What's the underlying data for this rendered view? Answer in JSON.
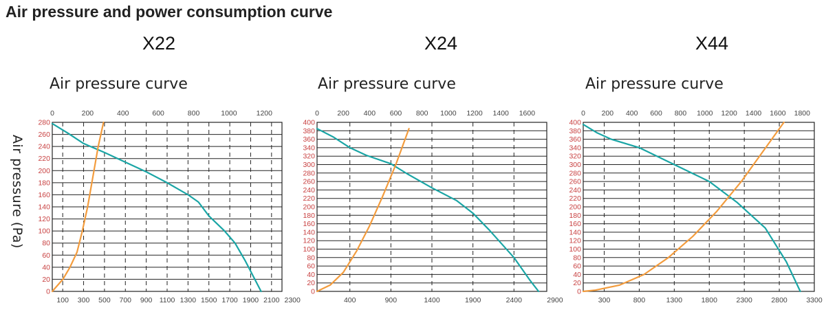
{
  "page_title": "Air pressure and power consumption curve",
  "yaxis_title": "Air pressure (Pa)",
  "colors": {
    "pressure_curve": "#1aa5a5",
    "power_curve": "#f39c3d",
    "tick_red": "#c84040",
    "grid": "#222222"
  },
  "chart_data": [
    {
      "type": "line",
      "model": "X22",
      "title": "Air pressure curve",
      "top_axis": {
        "ticks": [
          0,
          200,
          400,
          600,
          800,
          1000,
          1200
        ],
        "range": [
          0,
          1300
        ]
      },
      "bottom_axis": {
        "ticks": [
          100,
          300,
          500,
          700,
          900,
          1100,
          1300,
          1500,
          1700,
          1900,
          2100,
          2300
        ],
        "range": [
          0,
          2200
        ]
      },
      "y_axis": {
        "ticks": [
          0,
          20,
          40,
          60,
          80,
          100,
          120,
          140,
          160,
          180,
          200,
          220,
          240,
          260,
          280
        ],
        "range": [
          0,
          280
        ]
      },
      "series": [
        {
          "name": "Air pressure",
          "axis": "bottom",
          "x": [
            0,
            150,
            300,
            500,
            700,
            900,
            1100,
            1300,
            1400,
            1500,
            1650,
            1750,
            1850,
            2000
          ],
          "y": [
            278,
            262,
            245,
            230,
            214,
            198,
            180,
            160,
            148,
            125,
            100,
            80,
            50,
            0
          ]
        },
        {
          "name": "Power consumption",
          "axis": "top",
          "x": [
            0,
            60,
            100,
            140,
            170,
            200,
            230,
            260,
            290
          ],
          "y": [
            0,
            20,
            40,
            65,
            100,
            140,
            190,
            240,
            290
          ]
        }
      ]
    },
    {
      "type": "line",
      "model": "X24",
      "title": "Air pressure curve",
      "top_axis": {
        "ticks": [
          0,
          200,
          400,
          600,
          800,
          1000,
          1200,
          1400,
          1600
        ],
        "range": [
          0,
          1750
        ]
      },
      "bottom_axis": {
        "ticks": [
          400,
          900,
          1400,
          1900,
          2400,
          2900
        ],
        "range": [
          0,
          2800
        ]
      },
      "y_axis": {
        "ticks": [
          0,
          20,
          40,
          60,
          80,
          100,
          120,
          140,
          160,
          180,
          200,
          220,
          240,
          260,
          280,
          300,
          320,
          340,
          360,
          380,
          400
        ],
        "range": [
          0,
          400
        ]
      },
      "series": [
        {
          "name": "Air pressure",
          "axis": "bottom",
          "x": [
            0,
            200,
            400,
            600,
            900,
            1100,
            1400,
            1700,
            1900,
            2100,
            2400,
            2600,
            2700
          ],
          "y": [
            385,
            365,
            340,
            322,
            302,
            278,
            245,
            215,
            185,
            145,
            80,
            25,
            0
          ]
        },
        {
          "name": "Power consumption",
          "axis": "top",
          "x": [
            0,
            100,
            200,
            300,
            400,
            500,
            600,
            700
          ],
          "y": [
            0,
            15,
            45,
            95,
            155,
            225,
            300,
            385
          ]
        }
      ]
    },
    {
      "type": "line",
      "model": "X44",
      "title": "Air pressure curve",
      "top_axis": {
        "ticks": [
          0,
          200,
          400,
          600,
          800,
          1000,
          1200,
          1400,
          1600,
          1800
        ],
        "range": [
          0,
          1900
        ]
      },
      "bottom_axis": {
        "ticks": [
          300,
          800,
          1300,
          1800,
          2300,
          2800,
          3300
        ],
        "range": [
          0,
          3300
        ]
      },
      "y_axis": {
        "ticks": [
          0,
          20,
          40,
          60,
          80,
          100,
          120,
          140,
          160,
          180,
          200,
          220,
          240,
          260,
          280,
          300,
          320,
          340,
          360,
          380,
          400
        ],
        "range": [
          0,
          400
        ]
      },
      "series": [
        {
          "name": "Air pressure",
          "axis": "bottom",
          "x": [
            0,
            200,
            400,
            800,
            1300,
            1800,
            2200,
            2600,
            2900,
            3100
          ],
          "y": [
            395,
            375,
            360,
            340,
            300,
            260,
            210,
            150,
            70,
            0
          ]
        },
        {
          "name": "Power consumption",
          "axis": "top",
          "x": [
            0,
            100,
            300,
            500,
            700,
            900,
            1100,
            1300,
            1500,
            1650
          ],
          "y": [
            0,
            3,
            15,
            40,
            80,
            130,
            190,
            260,
            340,
            400
          ]
        }
      ]
    }
  ]
}
